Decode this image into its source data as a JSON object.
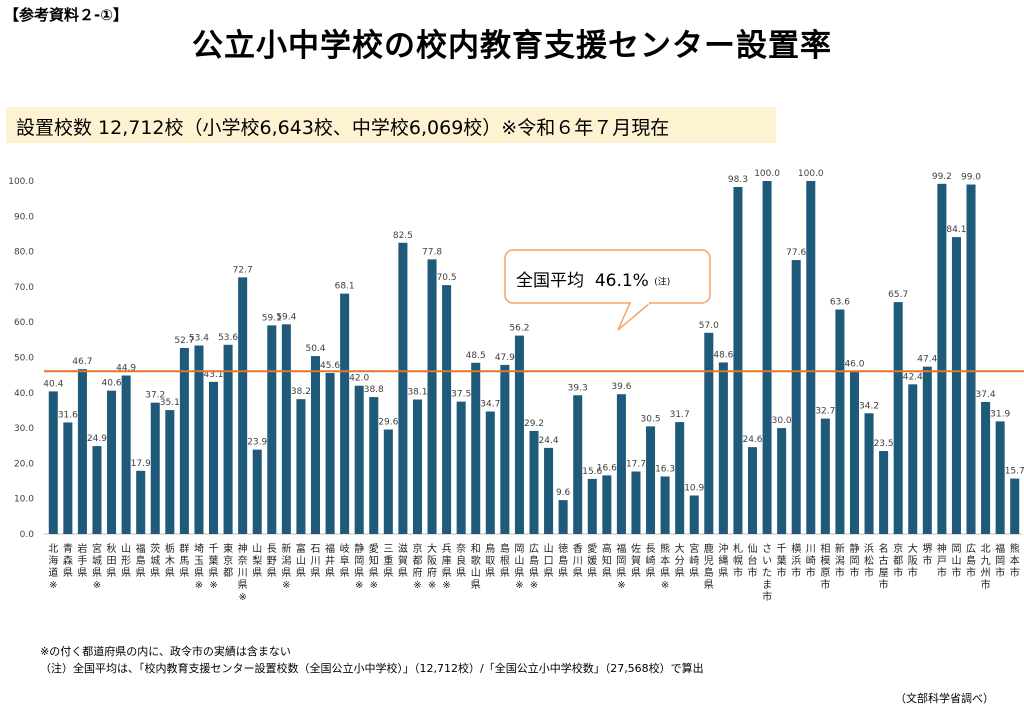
{
  "header": {
    "ref_tag": "【参考資料２-①】",
    "title": "公立小中学校の校内教育支援センター設置率"
  },
  "banner": {
    "text": "設置校数 12,712校（小学校6,643校、中学校6,069校）※令和６年７月現在"
  },
  "callout": {
    "label": "全国平均",
    "value": "46.1%",
    "note": "(注)"
  },
  "notes": {
    "asterisk_note": "※の付く都道府県の内に、政令市の実績は含まない",
    "average_note": "（注）全国平均は、「校内教育支援センター設置校数（全国公立小中学校）」（12,712校）/「全国公立小中学校数」（27,568校）で算出",
    "source": "（文部科学省調べ）"
  },
  "chart_data": {
    "type": "bar",
    "title": "",
    "xlabel": "",
    "ylabel": "",
    "ylim": [
      0,
      100
    ],
    "yticks": [
      "0.0",
      "10.0",
      "20.0",
      "30.0",
      "40.0",
      "50.0",
      "60.0",
      "70.0",
      "80.0",
      "90.0",
      "100.0"
    ],
    "grid": false,
    "bar_color": "#1f5a7a",
    "average_line": {
      "value": 46.1,
      "color": "#e0762f"
    },
    "categories": [
      "北海道",
      "青森県",
      "岩手県",
      "宮城県",
      "秋田県",
      "山形県",
      "福島県",
      "茨城県",
      "栃木県",
      "群馬県",
      "埼玉県",
      "千葉県",
      "東京都",
      "神奈川県",
      "山梨県",
      "長野県",
      "新潟県",
      "富山県",
      "石川県",
      "福井県",
      "岐阜県",
      "静岡県",
      "愛知県",
      "三重県",
      "滋賀県",
      "京都府",
      "大阪府",
      "兵庫県",
      "奈良県",
      "和歌山県",
      "鳥取県",
      "島根県",
      "岡山県",
      "広島県",
      "山口県",
      "徳島県",
      "香川県",
      "愛媛県",
      "高知県",
      "福岡県",
      "佐賀県",
      "長崎県",
      "熊本県",
      "大分県",
      "宮崎県",
      "鹿児島県",
      "沖縄県",
      "札幌市",
      "仙台市",
      "さいたま市",
      "千葉市",
      "横浜市",
      "川崎市",
      "相模原市",
      "新潟市",
      "静岡市",
      "浜松市",
      "名古屋市",
      "京都市",
      "大阪市",
      "堺市",
      "神戸市",
      "岡山市",
      "広島市",
      "北九州市",
      "福岡市",
      "熊本市"
    ],
    "asterisk": [
      "※",
      "",
      "",
      "※",
      "",
      "",
      "",
      "",
      "",
      "",
      "※",
      "※",
      "",
      "※",
      "",
      "",
      "※",
      "",
      "",
      "",
      "",
      "※",
      "※",
      "",
      "",
      "※",
      "※",
      "※",
      "",
      "",
      "",
      "",
      "※",
      "※",
      "",
      "",
      "",
      "",
      "",
      "※",
      "",
      "",
      "※",
      "",
      "",
      "",
      "",
      "",
      "",
      "",
      "",
      "",
      "",
      "",
      "",
      "",
      "",
      "",
      "",
      "",
      "",
      "",
      "",
      "",
      "",
      "",
      ""
    ],
    "values": [
      40.4,
      31.6,
      46.7,
      24.9,
      40.6,
      44.9,
      17.9,
      37.2,
      35.1,
      52.7,
      53.4,
      43.1,
      53.6,
      72.7,
      23.9,
      59.1,
      59.4,
      38.2,
      50.4,
      45.6,
      68.1,
      42.0,
      38.8,
      29.6,
      82.5,
      38.1,
      77.8,
      70.5,
      37.5,
      48.5,
      34.7,
      47.9,
      56.2,
      29.2,
      24.4,
      9.6,
      39.3,
      15.6,
      16.6,
      39.6,
      17.7,
      30.5,
      16.3,
      31.7,
      10.9,
      57.0,
      48.6,
      98.3,
      24.6,
      100.0,
      30.0,
      77.6,
      100.0,
      32.7,
      63.6,
      46.0,
      34.2,
      23.5,
      65.7,
      42.4,
      47.4,
      99.2,
      84.1,
      99.0,
      37.4,
      31.9,
      15.7
    ],
    "value_labels": [
      "40.4",
      "31.6",
      "46.7",
      "24.9",
      "40.6",
      "44.9",
      "17.9",
      "37.2",
      "35.1",
      "52.7",
      "53.4",
      "43.1",
      "53.6",
      "72.7",
      "23.9",
      "59.1",
      "59.4",
      "38.2",
      "50.4",
      "45.6",
      "68.1",
      "42.0",
      "38.8",
      "29.6",
      "82.5",
      "38.1",
      "77.8",
      "70.5",
      "37.5",
      "48.5",
      "34.7",
      "47.9",
      "56.2",
      "29.2",
      "24.4",
      "9.6",
      "39.3",
      "15.6",
      "16.6",
      "39.6",
      "17.7",
      "30.5",
      "16.3",
      "31.7",
      "10.9",
      "57.0",
      "48.6",
      "98.3",
      "24.6",
      "100.0",
      "30.0",
      "77.6",
      "100.0",
      "32.7",
      "63.6",
      "46.0",
      "34.2",
      "23.5",
      "65.7",
      "42.4",
      "47.4",
      "99.2",
      "84.1",
      "99.0",
      "37.4",
      "31.9",
      "15.7"
    ]
  }
}
